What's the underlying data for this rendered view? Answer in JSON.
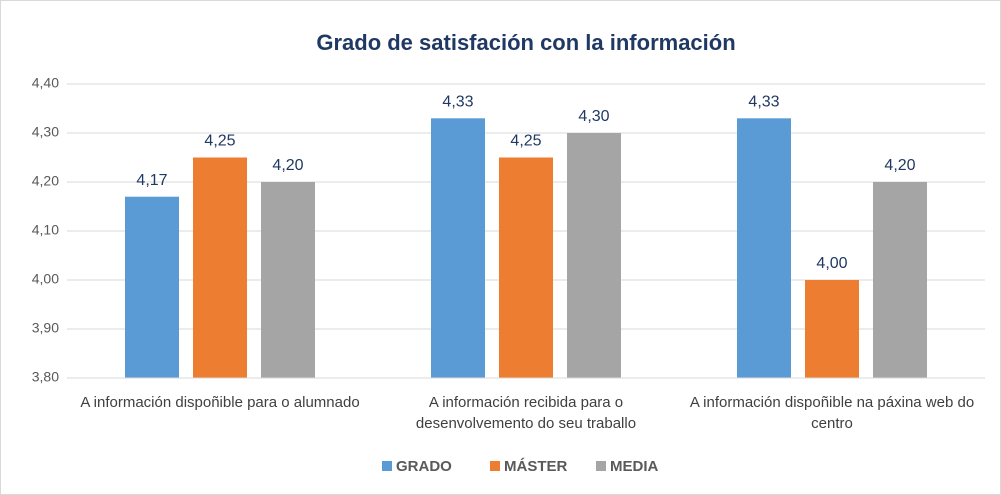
{
  "chart_data": {
    "type": "bar",
    "title": "Grado de satisfación con la información",
    "categories": [
      "A información dispoñible para o alumnado",
      "A información recibida para o desenvolvemento do seu traballo",
      "A información dispoñible na páxina web do centro"
    ],
    "series": [
      {
        "name": "GRADO",
        "color": "#5b9bd5",
        "values": [
          4.17,
          4.33,
          4.33
        ],
        "value_labels": [
          "4,17",
          "4,33",
          "4,33"
        ]
      },
      {
        "name": "MÁSTER",
        "color": "#ed7d31",
        "values": [
          4.25,
          4.25,
          4.0
        ],
        "value_labels": [
          "4,25",
          "4,25",
          "4,00"
        ]
      },
      {
        "name": "MEDIA",
        "color": "#a5a5a5",
        "values": [
          4.2,
          4.3,
          4.2
        ],
        "value_labels": [
          "4,20",
          "4,30",
          "4,20"
        ]
      }
    ],
    "ylim": [
      3.8,
      4.4
    ],
    "yticks": [
      {
        "value": 3.8,
        "label": "3,80"
      },
      {
        "value": 3.9,
        "label": "3,90"
      },
      {
        "value": 4.0,
        "label": "4,00"
      },
      {
        "value": 4.1,
        "label": "4,10"
      },
      {
        "value": 4.2,
        "label": "4,20"
      },
      {
        "value": 4.3,
        "label": "4,30"
      },
      {
        "value": 4.4,
        "label": "4,40"
      }
    ],
    "grid": true,
    "legend": "bottom"
  }
}
